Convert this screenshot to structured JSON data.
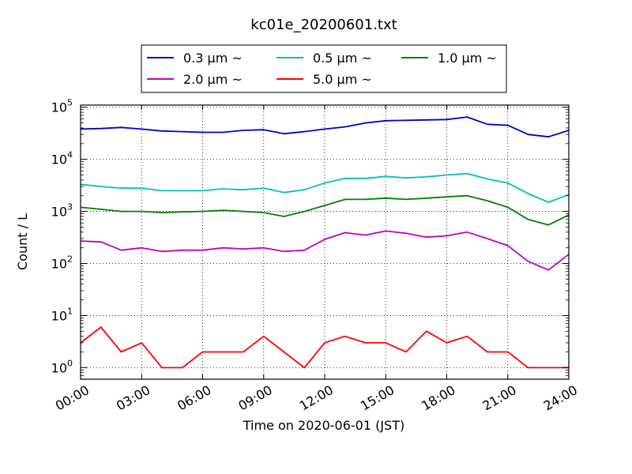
{
  "chart_data": {
    "type": "line",
    "title": "kc01e_20200601.txt",
    "xlabel": "Time on 2020-06-01 (JST)",
    "ylabel": "Count / L",
    "y_scale": "log",
    "ylim": [
      0.6,
      110000
    ],
    "xlim": [
      "2020-06-01T00:00",
      "2020-06-02T00:00"
    ],
    "grid": true,
    "legend_position": "top-center, outside plot",
    "x_ticks": [
      "00:00",
      "03:00",
      "06:00",
      "09:00",
      "12:00",
      "15:00",
      "18:00",
      "21:00",
      "24:00"
    ],
    "y_ticks": [
      {
        "value": 1,
        "base": "10",
        "exp": "0"
      },
      {
        "value": 10,
        "base": "10",
        "exp": "1"
      },
      {
        "value": 100,
        "base": "10",
        "exp": "2"
      },
      {
        "value": 1000,
        "base": "10",
        "exp": "3"
      },
      {
        "value": 10000,
        "base": "10",
        "exp": "4"
      },
      {
        "value": 100000,
        "base": "10",
        "exp": "5"
      }
    ],
    "x": [
      "00:00",
      "01:00",
      "02:00",
      "03:00",
      "04:00",
      "05:00",
      "06:00",
      "07:00",
      "08:00",
      "09:00",
      "10:00",
      "11:00",
      "12:00",
      "13:00",
      "14:00",
      "15:00",
      "16:00",
      "17:00",
      "18:00",
      "19:00",
      "20:00",
      "21:00",
      "22:00",
      "23:00",
      "24:00"
    ],
    "series": [
      {
        "name": "0.3 µm ~",
        "color": "#0000cc",
        "values": [
          38000,
          39000,
          41000,
          38000,
          35000,
          34000,
          33000,
          33000,
          36000,
          37000,
          31000,
          34000,
          38000,
          42000,
          50000,
          55000,
          56000,
          57000,
          58000,
          65000,
          47000,
          45000,
          30000,
          27000,
          36000
        ]
      },
      {
        "name": "0.5 µm ~",
        "color": "#00bfbf",
        "values": [
          3300,
          3000,
          2800,
          2800,
          2500,
          2500,
          2500,
          2700,
          2600,
          2800,
          2300,
          2600,
          3500,
          4300,
          4300,
          4700,
          4400,
          4600,
          5000,
          5300,
          4200,
          3500,
          2200,
          1500,
          2100
        ]
      },
      {
        "name": "1.0 µm ~",
        "color": "#008000",
        "values": [
          1200,
          1100,
          1000,
          1000,
          950,
          980,
          1000,
          1050,
          1000,
          950,
          800,
          1000,
          1300,
          1700,
          1700,
          1800,
          1700,
          1800,
          1900,
          2000,
          1600,
          1200,
          700,
          550,
          850
        ]
      },
      {
        "name": "2.0 µm ~",
        "color": "#bf00bf",
        "values": [
          270,
          260,
          180,
          200,
          170,
          180,
          180,
          200,
          190,
          200,
          170,
          180,
          290,
          390,
          350,
          420,
          380,
          320,
          340,
          400,
          300,
          220,
          110,
          75,
          150
        ]
      },
      {
        "name": "5.0 µm ~",
        "color": "#ff0000",
        "values": [
          3,
          6,
          2,
          3,
          1,
          1,
          2,
          2,
          2,
          4,
          2,
          1,
          3,
          4,
          3,
          3,
          2,
          5,
          3,
          4,
          2,
          2,
          1,
          1,
          1
        ]
      }
    ]
  }
}
